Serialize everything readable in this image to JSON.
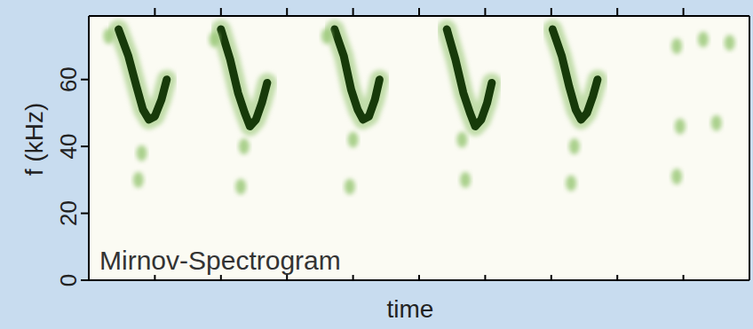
{
  "chart_data": {
    "type": "line",
    "x_label": "time",
    "y_label": "f (kHz)",
    "annotation": "Mirnov-Spectrogram",
    "xlim": [
      0,
      10
    ],
    "ylim": [
      0,
      79
    ],
    "xticks": [
      1,
      2,
      3,
      4,
      5,
      6,
      7,
      8,
      9
    ],
    "yticks": [
      0,
      20,
      40,
      60
    ],
    "tick_labels": "y",
    "grid": false,
    "series": [
      {
        "type": "line",
        "color": "#173a0a",
        "line_style": "solid",
        "x": [
          0.45,
          0.6,
          0.72,
          0.82,
          0.91,
          1.0,
          1.1,
          1.18
        ],
        "values": [
          75,
          67,
          58,
          51,
          48,
          49,
          54,
          60
        ]
      },
      {
        "type": "line",
        "color": "#173a0a",
        "line_style": "solid",
        "x": [
          2.0,
          2.14,
          2.26,
          2.36,
          2.44,
          2.53,
          2.62,
          2.7
        ],
        "values": [
          75,
          66,
          56,
          50,
          46,
          48,
          53,
          59
        ]
      },
      {
        "type": "line",
        "color": "#173a0a",
        "line_style": "solid",
        "x": [
          3.72,
          3.86,
          3.97,
          4.07,
          4.15,
          4.24,
          4.33,
          4.4
        ],
        "values": [
          75,
          67,
          57,
          51,
          48,
          49,
          54,
          60
        ]
      },
      {
        "type": "line",
        "color": "#173a0a",
        "line_style": "solid",
        "x": [
          5.42,
          5.55,
          5.67,
          5.77,
          5.85,
          5.94,
          6.03,
          6.1
        ],
        "values": [
          75,
          66,
          56,
          50,
          46,
          48,
          53,
          59
        ]
      },
      {
        "type": "line",
        "color": "#173a0a",
        "line_style": "solid",
        "x": [
          7.02,
          7.16,
          7.27,
          7.37,
          7.45,
          7.54,
          7.63,
          7.7
        ],
        "values": [
          75,
          67,
          58,
          51,
          48,
          50,
          55,
          60
        ]
      },
      {
        "type": "scatter",
        "color": "#9cc97a",
        "marker": "circle",
        "x": [
          0.75,
          2.3,
          3.95,
          5.7,
          7.3,
          8.9,
          0.8,
          2.35,
          4.0,
          5.65,
          7.35,
          8.95,
          9.5,
          8.9,
          9.3,
          9.7,
          0.3,
          1.9,
          3.6
        ],
        "values": [
          30,
          28,
          28,
          30,
          29,
          31,
          38,
          40,
          42,
          42,
          40,
          46,
          47,
          70,
          72,
          71,
          73,
          72,
          73
        ]
      }
    ]
  }
}
